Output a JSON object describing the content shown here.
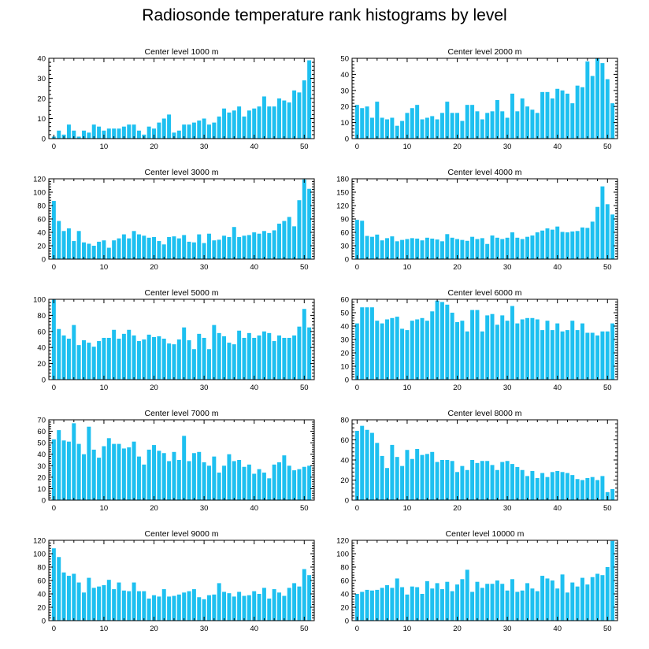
{
  "figure": {
    "title": "Radiosonde temperature rank histograms by level"
  },
  "style": {
    "bar_color": "#1ec0f0",
    "axis_color": "#000000"
  },
  "chart_data": [
    {
      "type": "bar",
      "title": "Center level 1000 m",
      "xlim": [
        -1,
        52
      ],
      "ylim": [
        0,
        40
      ],
      "xticks": [
        0,
        10,
        20,
        30,
        40,
        50
      ],
      "yticks": [
        0,
        10,
        20,
        30,
        40
      ],
      "values": [
        1,
        4,
        2,
        7,
        4,
        1,
        4,
        3,
        7,
        6,
        4,
        5,
        5,
        5,
        6,
        7,
        7,
        4,
        2,
        6,
        5,
        8,
        10,
        12,
        3,
        4,
        7,
        7,
        8,
        9,
        10,
        7,
        8,
        11,
        15,
        13,
        14,
        16,
        11,
        14,
        15,
        16,
        21,
        16,
        16,
        20,
        19,
        18,
        24,
        23,
        29,
        39
      ]
    },
    {
      "type": "bar",
      "title": "Center level 2000 m",
      "xlim": [
        -1,
        52
      ],
      "ylim": [
        0,
        50
      ],
      "xticks": [
        0,
        10,
        20,
        30,
        40,
        50
      ],
      "yticks": [
        0,
        10,
        20,
        30,
        40,
        50
      ],
      "values": [
        21,
        19,
        20,
        13,
        23,
        13,
        12,
        13,
        8,
        11,
        16,
        19,
        21,
        12,
        13,
        14,
        12,
        16,
        23,
        16,
        16,
        11,
        21,
        21,
        17,
        12,
        16,
        17,
        24,
        17,
        13,
        28,
        17,
        25,
        20,
        18,
        16,
        29,
        29,
        25,
        31,
        30,
        28,
        22,
        33,
        32,
        48,
        39,
        50,
        47,
        37,
        22
      ]
    },
    {
      "type": "bar",
      "title": "Center level 3000 m",
      "xlim": [
        -1,
        52
      ],
      "ylim": [
        0,
        120
      ],
      "xticks": [
        0,
        10,
        20,
        30,
        40,
        50
      ],
      "yticks": [
        0,
        20,
        40,
        60,
        80,
        100,
        120
      ],
      "values": [
        87,
        57,
        42,
        46,
        27,
        42,
        25,
        23,
        20,
        26,
        28,
        17,
        28,
        31,
        37,
        31,
        42,
        37,
        35,
        32,
        33,
        27,
        22,
        33,
        34,
        31,
        36,
        26,
        25,
        37,
        24,
        38,
        28,
        29,
        35,
        33,
        48,
        33,
        35,
        36,
        40,
        38,
        42,
        39,
        43,
        53,
        57,
        63,
        49,
        88,
        119,
        105
      ]
    },
    {
      "type": "bar",
      "title": "Center level 4000 m",
      "xlim": [
        -1,
        52
      ],
      "ylim": [
        0,
        180
      ],
      "xticks": [
        0,
        10,
        20,
        30,
        40,
        50
      ],
      "yticks": [
        0,
        30,
        60,
        90,
        120,
        150,
        180
      ],
      "values": [
        88,
        86,
        52,
        50,
        55,
        42,
        47,
        51,
        40,
        43,
        45,
        47,
        46,
        42,
        48,
        46,
        44,
        40,
        56,
        48,
        45,
        43,
        41,
        50,
        45,
        47,
        34,
        53,
        48,
        45,
        48,
        60,
        48,
        45,
        50,
        53,
        60,
        64,
        69,
        66,
        73,
        61,
        60,
        62,
        63,
        71,
        70,
        84,
        117,
        163,
        123,
        100
      ]
    },
    {
      "type": "bar",
      "title": "Center level 5000 m",
      "xlim": [
        -1,
        52
      ],
      "ylim": [
        0,
        100
      ],
      "xticks": [
        0,
        10,
        20,
        30,
        40,
        50
      ],
      "yticks": [
        0,
        20,
        40,
        60,
        80,
        100
      ],
      "values": [
        100,
        63,
        55,
        51,
        68,
        43,
        49,
        46,
        41,
        48,
        52,
        52,
        62,
        51,
        57,
        62,
        55,
        48,
        50,
        56,
        53,
        54,
        51,
        45,
        44,
        50,
        65,
        49,
        38,
        57,
        52,
        38,
        68,
        58,
        54,
        46,
        44,
        61,
        52,
        58,
        52,
        55,
        60,
        58,
        48,
        55,
        52,
        52,
        55,
        66,
        88,
        65
      ]
    },
    {
      "type": "bar",
      "title": "Center level 6000 m",
      "xlim": [
        -1,
        52
      ],
      "ylim": [
        0,
        60
      ],
      "xticks": [
        0,
        10,
        20,
        30,
        40,
        50
      ],
      "yticks": [
        0,
        10,
        20,
        30,
        40,
        50,
        60
      ],
      "values": [
        42,
        54,
        54,
        54,
        44,
        42,
        45,
        46,
        47,
        38,
        37,
        44,
        45,
        46,
        44,
        51,
        59,
        58,
        56,
        50,
        43,
        44,
        36,
        52,
        52,
        36,
        48,
        49,
        41,
        48,
        44,
        55,
        42,
        45,
        46,
        46,
        45,
        37,
        44,
        37,
        42,
        36,
        37,
        44,
        37,
        42,
        35,
        35,
        33,
        36,
        36,
        42
      ]
    },
    {
      "type": "bar",
      "title": "Center level 7000 m",
      "xlim": [
        -1,
        52
      ],
      "ylim": [
        0,
        70
      ],
      "xticks": [
        0,
        10,
        20,
        30,
        40,
        50
      ],
      "yticks": [
        0,
        10,
        20,
        30,
        40,
        50,
        60,
        70
      ],
      "values": [
        53,
        61,
        52,
        51,
        67,
        49,
        40,
        64,
        44,
        37,
        47,
        54,
        49,
        49,
        45,
        46,
        51,
        38,
        31,
        44,
        48,
        43,
        41,
        34,
        42,
        35,
        56,
        34,
        41,
        42,
        33,
        30,
        38,
        24,
        30,
        40,
        34,
        35,
        29,
        31,
        23,
        27,
        24,
        19,
        31,
        33,
        39,
        30,
        26,
        27,
        29,
        30
      ]
    },
    {
      "type": "bar",
      "title": "Center level 8000 m",
      "xlim": [
        -1,
        52
      ],
      "ylim": [
        0,
        80
      ],
      "xticks": [
        0,
        10,
        20,
        30,
        40,
        50
      ],
      "yticks": [
        0,
        20,
        40,
        60,
        80
      ],
      "values": [
        69,
        74,
        70,
        67,
        57,
        44,
        32,
        55,
        43,
        34,
        50,
        41,
        51,
        45,
        46,
        48,
        38,
        40,
        40,
        39,
        28,
        34,
        30,
        40,
        37,
        39,
        39,
        35,
        30,
        38,
        39,
        36,
        33,
        30,
        24,
        29,
        22,
        27,
        23,
        28,
        29,
        28,
        27,
        25,
        21,
        20,
        22,
        23,
        20,
        24,
        8,
        11
      ]
    },
    {
      "type": "bar",
      "title": "Center level 9000 m",
      "xlim": [
        -1,
        52
      ],
      "ylim": [
        0,
        120
      ],
      "xticks": [
        0,
        10,
        20,
        30,
        40,
        50
      ],
      "yticks": [
        0,
        20,
        40,
        60,
        80,
        100,
        120
      ],
      "values": [
        108,
        95,
        72,
        67,
        70,
        57,
        42,
        64,
        49,
        51,
        53,
        61,
        47,
        57,
        45,
        44,
        57,
        44,
        44,
        33,
        38,
        36,
        47,
        36,
        37,
        39,
        42,
        44,
        47,
        35,
        32,
        38,
        39,
        56,
        43,
        41,
        36,
        43,
        37,
        38,
        44,
        40,
        49,
        33,
        47,
        42,
        37,
        49,
        56,
        51,
        77,
        68
      ]
    },
    {
      "type": "bar",
      "title": "Center level 10000 m",
      "xlim": [
        -1,
        52
      ],
      "ylim": [
        0,
        120
      ],
      "xticks": [
        0,
        10,
        20,
        30,
        40,
        50
      ],
      "yticks": [
        0,
        20,
        40,
        60,
        80,
        100,
        120
      ],
      "values": [
        40,
        43,
        46,
        45,
        46,
        49,
        53,
        49,
        63,
        50,
        39,
        51,
        50,
        40,
        59,
        48,
        56,
        47,
        58,
        44,
        54,
        62,
        76,
        43,
        58,
        49,
        55,
        55,
        60,
        55,
        45,
        62,
        43,
        45,
        56,
        48,
        44,
        67,
        63,
        60,
        48,
        69,
        42,
        57,
        51,
        64,
        54,
        65,
        70,
        68,
        80,
        119
      ]
    }
  ]
}
